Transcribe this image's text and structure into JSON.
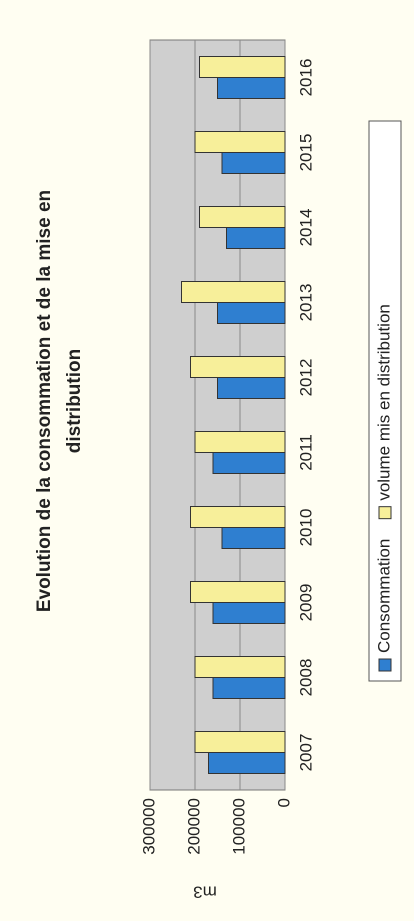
{
  "chart_data": {
    "type": "bar",
    "title": [
      "Evolution de la consommation et de la mise en",
      "distribution"
    ],
    "y_label": "m3",
    "categories": [
      "2007",
      "2008",
      "2009",
      "2010",
      "2011",
      "2012",
      "2013",
      "2014",
      "2015",
      "2016"
    ],
    "series": [
      {
        "name": "Consommation",
        "color": "#2f7fd0",
        "values": [
          170000,
          160000,
          160000,
          140000,
          160000,
          150000,
          150000,
          130000,
          140000,
          150000
        ]
      },
      {
        "name": "volume mis en distribution",
        "color": "#f7ef9a",
        "values": [
          200000,
          200000,
          210000,
          210000,
          200000,
          210000,
          230000,
          190000,
          200000,
          190000
        ]
      }
    ],
    "ylim": [
      0,
      300000
    ],
    "yticks": [
      0,
      100000,
      200000,
      300000
    ],
    "grid": true,
    "legend": "bottom"
  }
}
